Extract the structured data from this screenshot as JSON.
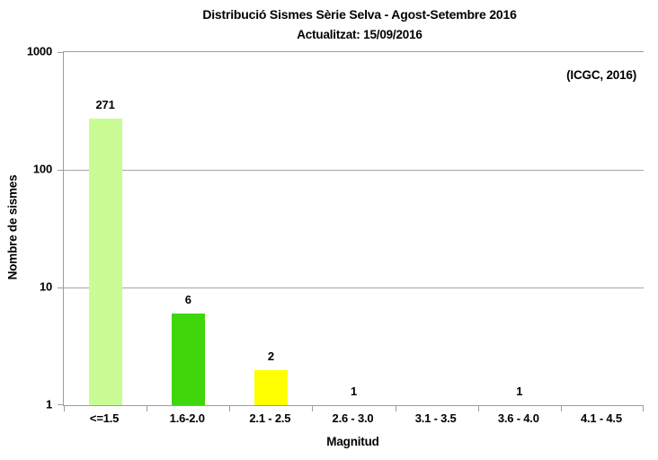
{
  "page": {
    "background": "#ffffff",
    "text_color": "#000000"
  },
  "chart_data": {
    "type": "bar",
    "title": "Distribució Sismes Sèrie Selva - Agost-Setembre 2016",
    "subtitle": "Actualitzat: 15/09/2016",
    "annotation": "(ICGC, 2016)",
    "xlabel": "Magnitud",
    "ylabel": "Nombre de sismes",
    "categories": [
      "<=1.5",
      "1.6-2.0",
      "2.1 - 2.5",
      "2.6 - 3.0",
      "3.1 - 3.5",
      "3.6 - 4.0",
      "4.1 - 4.5"
    ],
    "values": [
      271,
      6,
      2,
      1,
      0,
      1,
      0
    ],
    "data_labels": [
      "271",
      "6",
      "2",
      "1",
      "",
      "1",
      ""
    ],
    "bar_colors": [
      "#C9FC95",
      "#3FD60C",
      "#FFFF00",
      null,
      null,
      null,
      null
    ],
    "y_scale": "log10",
    "ylim": [
      1,
      1000
    ],
    "y_ticks": [
      1,
      10,
      100,
      1000
    ],
    "grid": "horizontal-major",
    "legend": "none",
    "axis_color": "#9d9d9d",
    "grid_color": "#a6a6a6"
  }
}
